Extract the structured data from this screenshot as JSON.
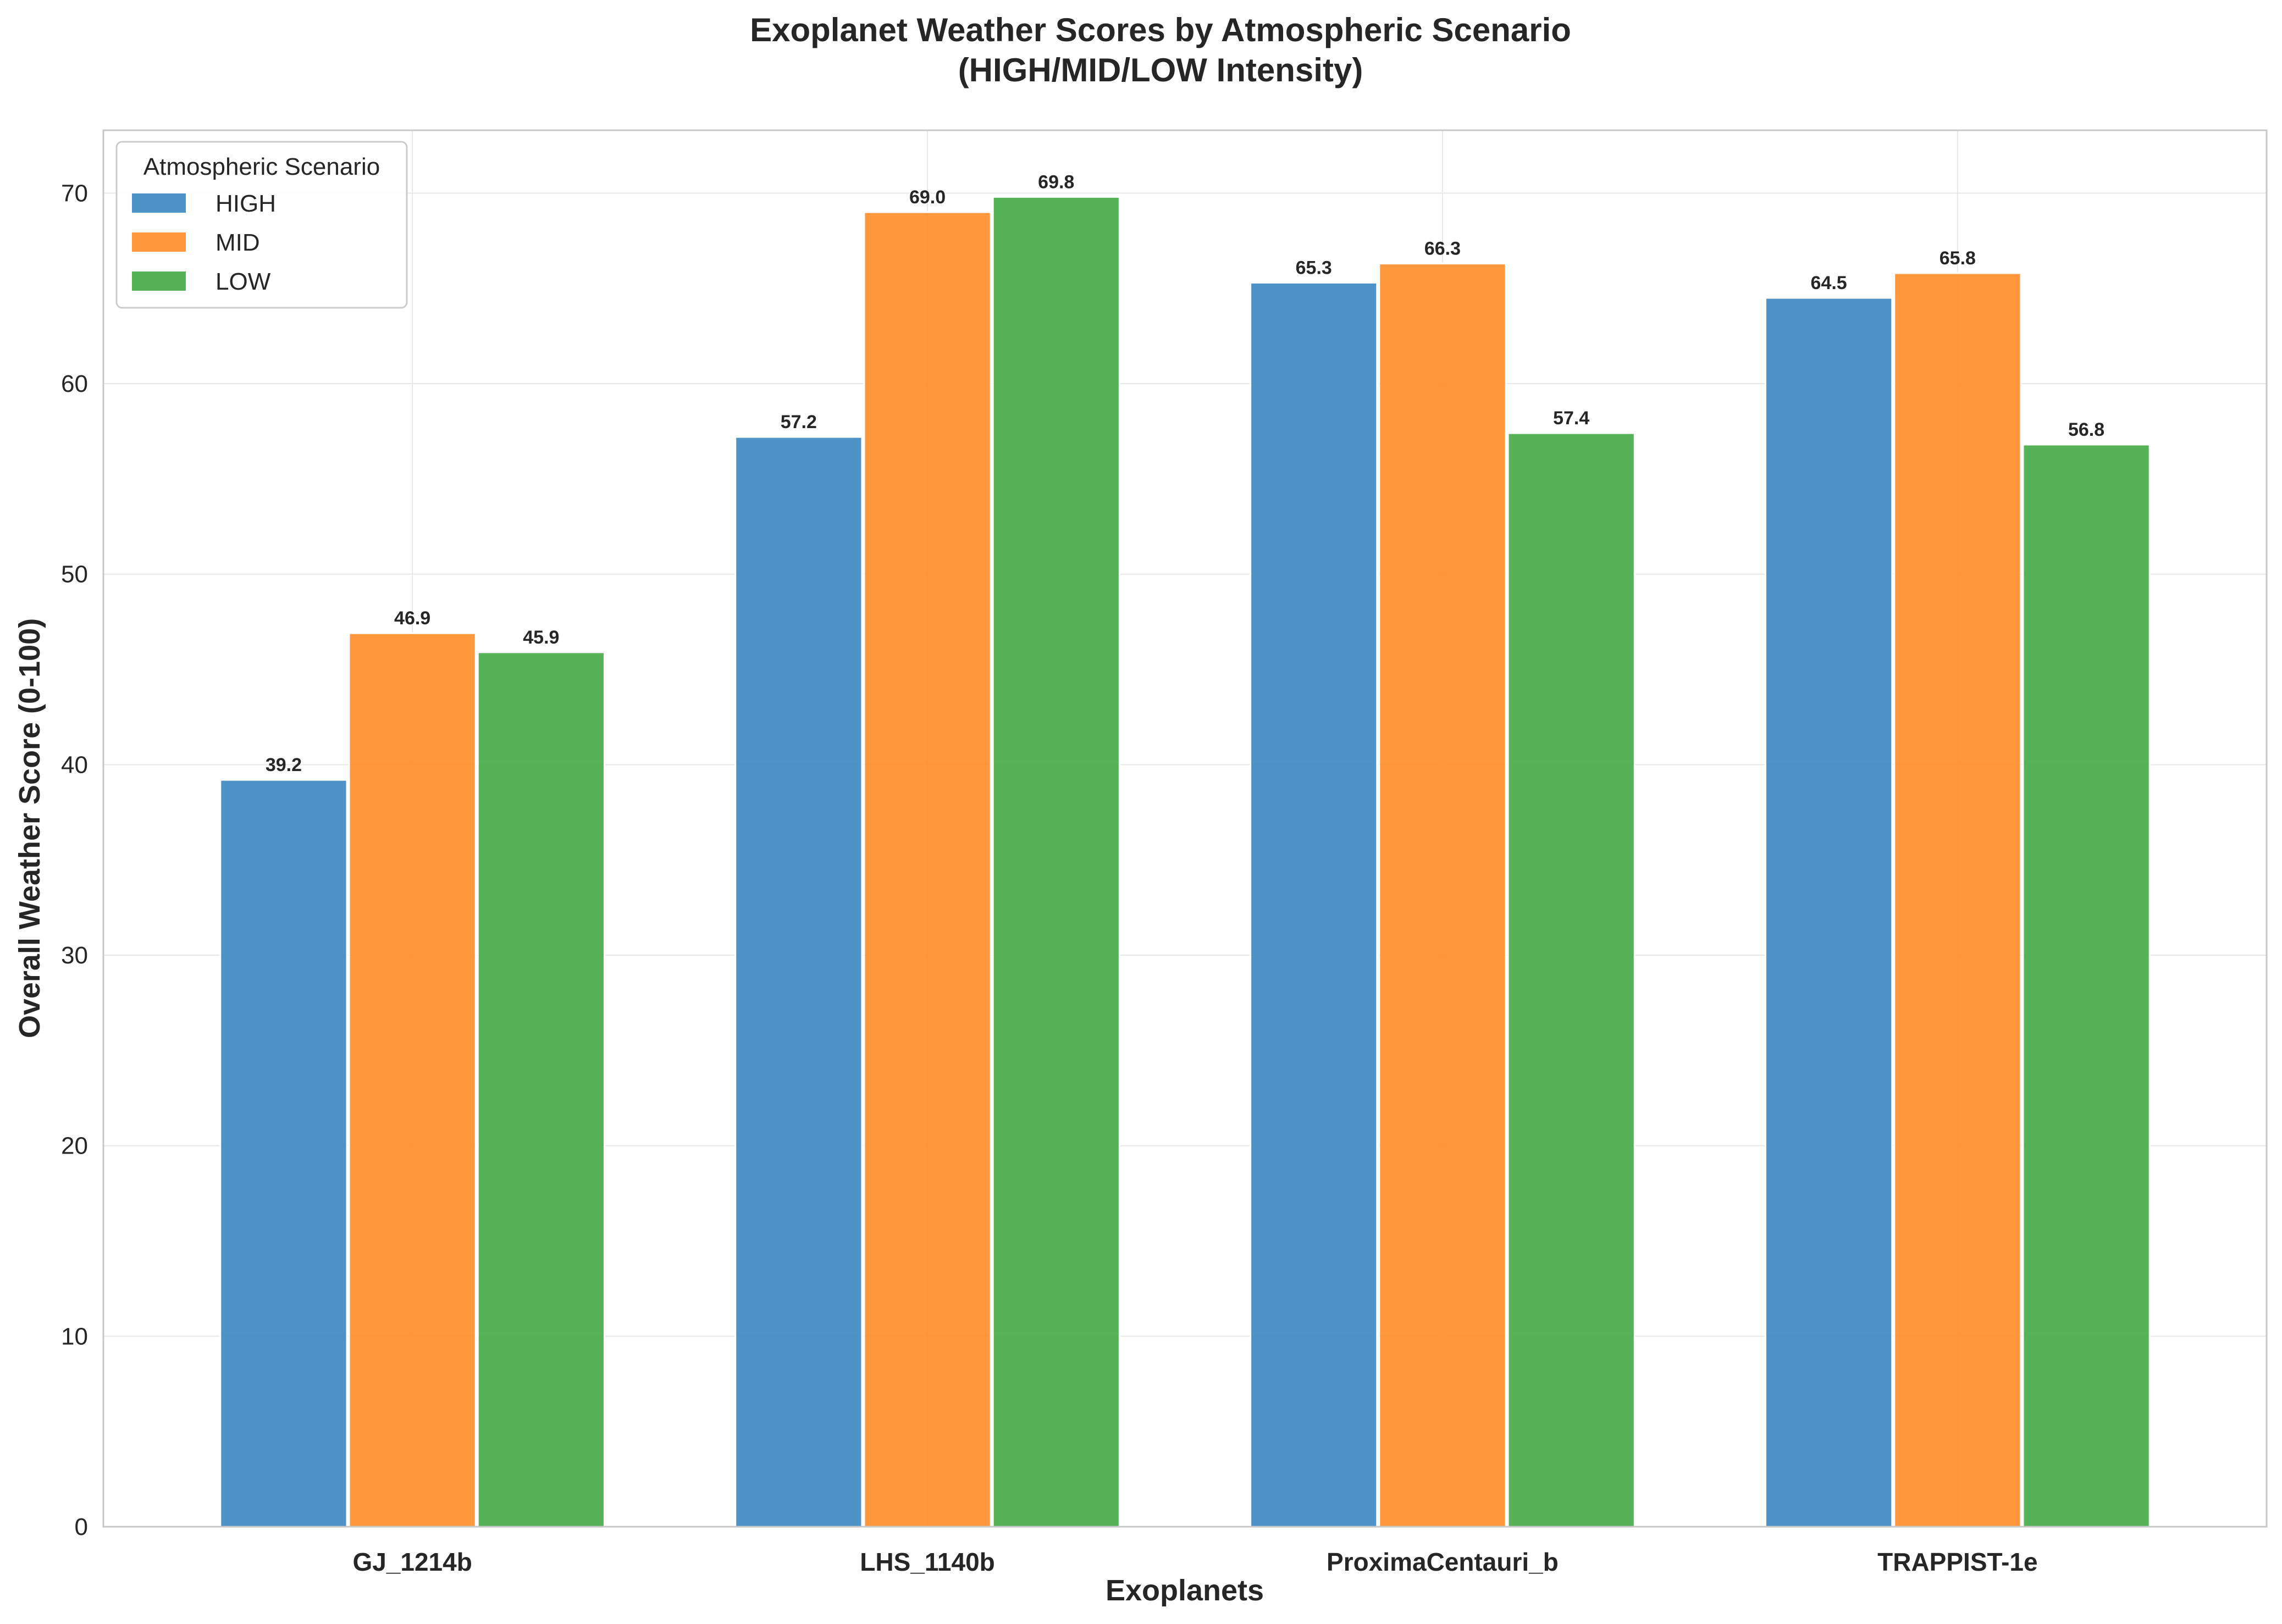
{
  "chart_data": {
    "type": "bar",
    "title_line1": "Exoplanet Weather Scores by Atmospheric Scenario",
    "title_line2": "(HIGH/MID/LOW Intensity)",
    "xlabel": "Exoplanets",
    "ylabel": "Overall Weather Score (0-100)",
    "categories": [
      "GJ_1214b",
      "LHS_1140b",
      "ProximaCentauri_b",
      "TRAPPIST-1e"
    ],
    "series": [
      {
        "name": "HIGH",
        "color": "#3a87c0",
        "values": [
          39.2,
          57.2,
          65.3,
          64.5
        ]
      },
      {
        "name": "MID",
        "color": "#ff8c28",
        "values": [
          46.9,
          69.0,
          66.3,
          65.8
        ]
      },
      {
        "name": "LOW",
        "color": "#45ab45",
        "values": [
          45.9,
          69.8,
          57.4,
          56.8
        ]
      }
    ],
    "ylim": [
      0,
      73.3
    ],
    "yticks": [
      0,
      10,
      20,
      30,
      40,
      50,
      60,
      70
    ],
    "grid": true,
    "legend_title": "Atmospheric Scenario",
    "legend_position": "top-left"
  }
}
